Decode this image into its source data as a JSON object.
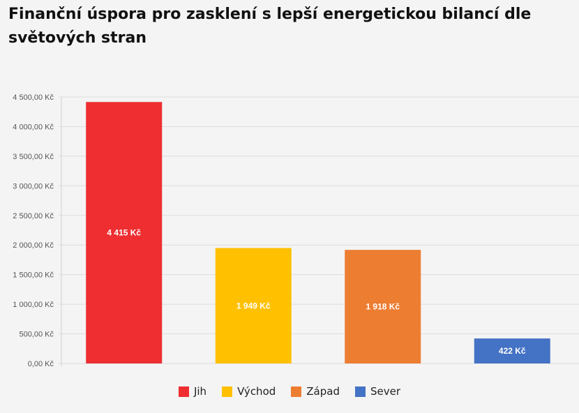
{
  "chart_data": {
    "type": "bar",
    "title": "Finanční úspora pro zasklení s lepší energetickou bilancí dle světových stran",
    "categories": [
      "Jih",
      "Východ",
      "Západ",
      "Sever"
    ],
    "values": [
      4415,
      1949,
      1918,
      422
    ],
    "data_labels": [
      "4 415 Kč",
      "1 949 Kč",
      "1 918 Kč",
      "422 Kč"
    ],
    "colors": [
      "#EE2E31",
      "#FFC000",
      "#ED7D31",
      "#4472C4"
    ],
    "ylim": [
      0,
      4500
    ],
    "yticks": [
      0,
      500,
      1000,
      1500,
      2000,
      2500,
      3000,
      3500,
      4000,
      4500
    ],
    "ytick_labels": [
      "0,00 Kč",
      "500,00 Kč",
      "1 000,00 Kč",
      "1 500,00 Kč",
      "2 000,00 Kč",
      "2 500,00 Kč",
      "3 000,00 Kč",
      "3 500,00 Kč",
      "4 000,00 Kč",
      "4 500,00 Kč"
    ],
    "grid": true,
    "legend_position": "bottom",
    "xlabel": "",
    "ylabel": ""
  }
}
